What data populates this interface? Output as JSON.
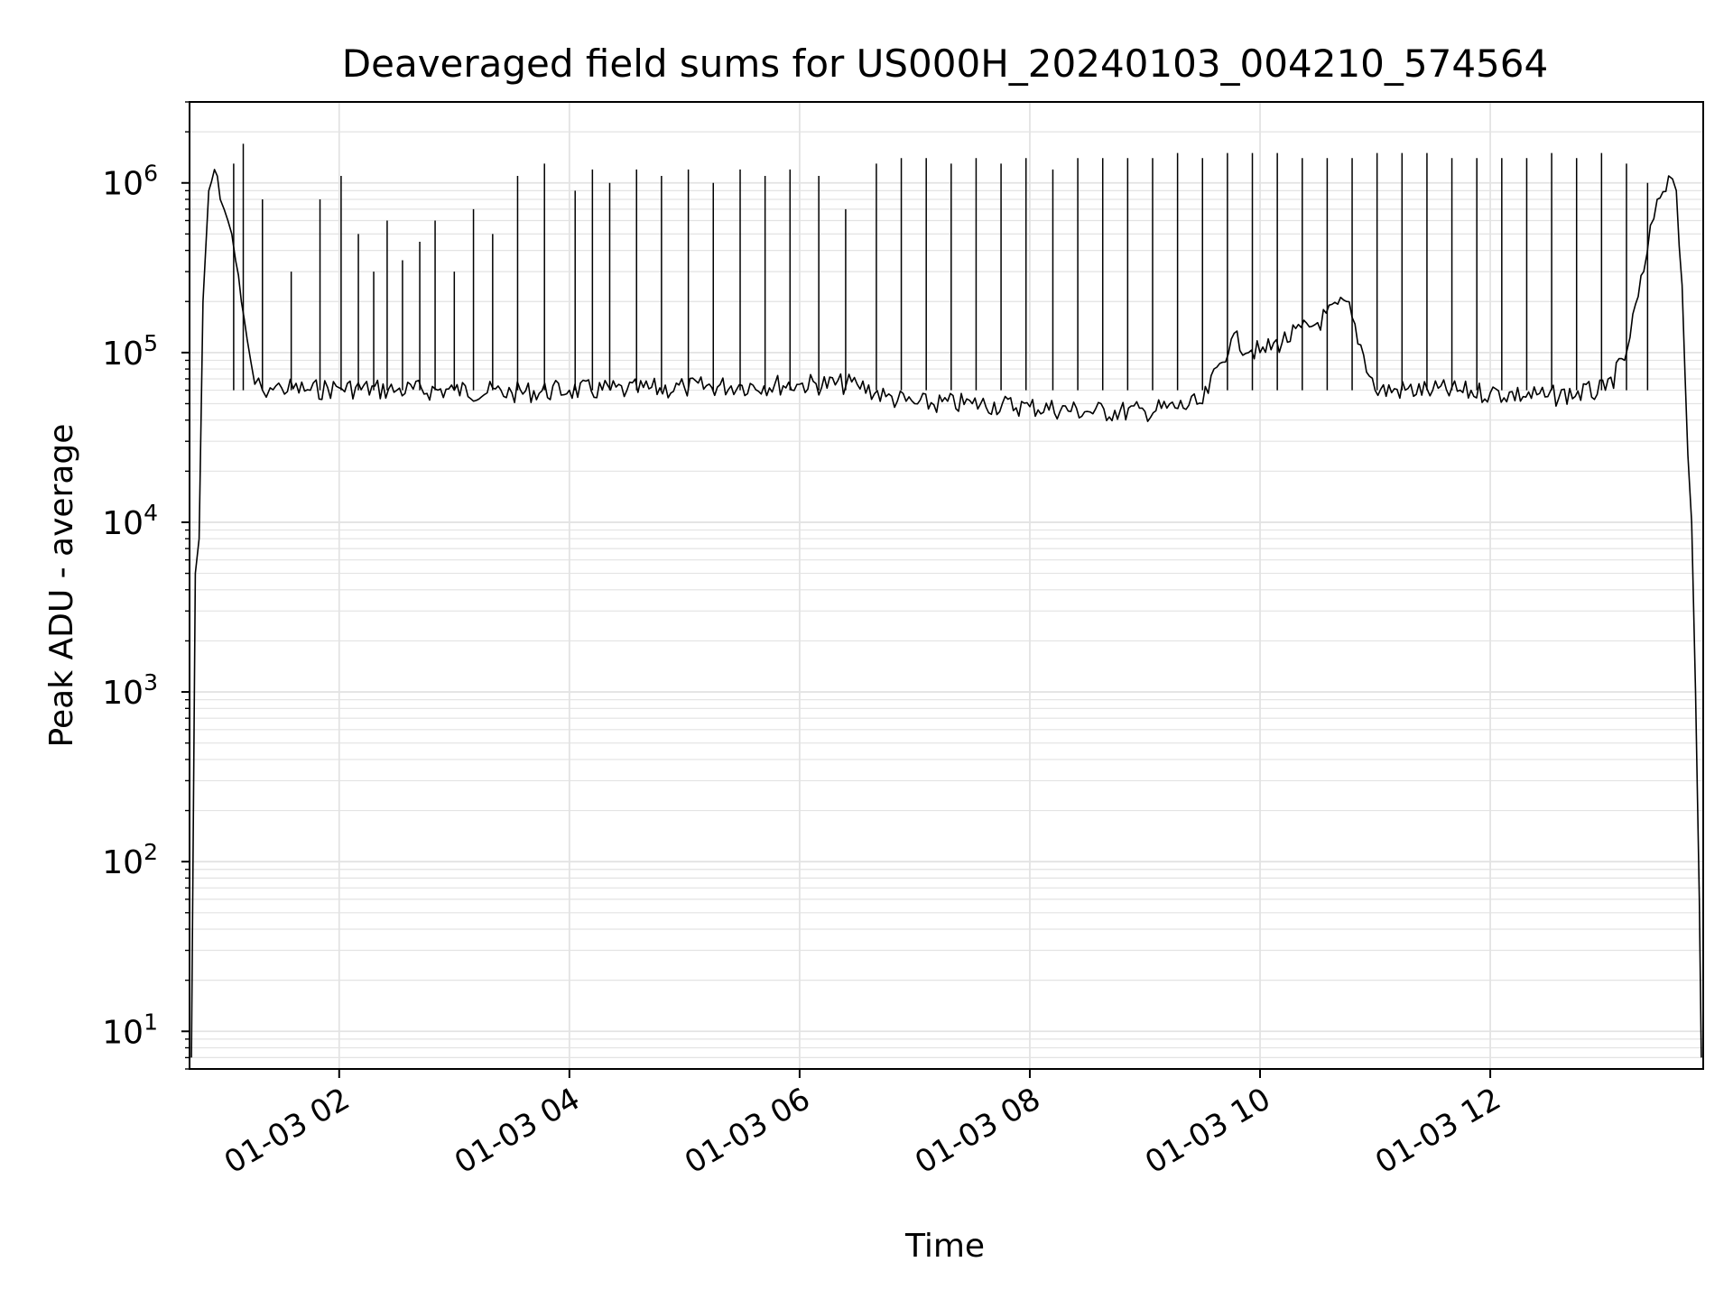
{
  "chart_data": {
    "type": "line",
    "title": "Deaveraged field sums for US000H_20240103_004210_574564",
    "xlabel": "Time",
    "ylabel": "Peak ADU - average",
    "x_ticks": [
      "01-03 02",
      "01-03 04",
      "01-03 06",
      "01-03 08",
      "01-03 10",
      "01-03 12"
    ],
    "y_scale": "log",
    "y_ticks": [
      {
        "value": 10,
        "base": "10",
        "exp": "1"
      },
      {
        "value": 100,
        "base": "10",
        "exp": "2"
      },
      {
        "value": 1000,
        "base": "10",
        "exp": "3"
      },
      {
        "value": 10000,
        "base": "10",
        "exp": "4"
      },
      {
        "value": 100000,
        "base": "10",
        "exp": "5"
      },
      {
        "value": 1000000,
        "base": "10",
        "exp": "6"
      }
    ],
    "xlim": [
      "2024-01-03 00:42",
      "2024-01-03 13:51"
    ],
    "ylim": [
      6,
      3000000
    ],
    "grid": true,
    "line_color": "#000000",
    "grid_color": "#e3e3e3",
    "series": [
      {
        "x": [
          "2024-01-03 00:43",
          "2024-01-03 00:45",
          "2024-01-03 00:47",
          "2024-01-03 00:49",
          "2024-01-03 00:52",
          "2024-01-03 00:55",
          "2024-01-03 00:58",
          "2024-01-03 01:00",
          "2024-01-03 01:02",
          "2024-01-03 01:04",
          "2024-01-03 01:06",
          "2024-01-03 01:09",
          "2024-01-03 01:12",
          "2024-01-03 01:16",
          "2024-01-03 01:20",
          "2024-01-03 01:24",
          "2024-01-03 01:30",
          "2024-01-03 01:45",
          "2024-01-03 02:00",
          "2024-01-03 02:30",
          "2024-01-03 03:00",
          "2024-01-03 03:30",
          "2024-01-03 04:00",
          "2024-01-03 04:30",
          "2024-01-03 05:00",
          "2024-01-03 05:30",
          "2024-01-03 06:00",
          "2024-01-03 06:30",
          "2024-01-03 06:45",
          "2024-01-03 07:00",
          "2024-01-03 07:30",
          "2024-01-03 08:00",
          "2024-01-03 08:30",
          "2024-01-03 09:00",
          "2024-01-03 09:30",
          "2024-01-03 09:45",
          "2024-01-03 10:00",
          "2024-01-03 10:30",
          "2024-01-03 10:45",
          "2024-01-03 11:00",
          "2024-01-03 11:30",
          "2024-01-03 12:00",
          "2024-01-03 12:30",
          "2024-01-03 13:00",
          "2024-01-03 13:10",
          "2024-01-03 13:20",
          "2024-01-03 13:27",
          "2024-01-03 13:33",
          "2024-01-03 13:37",
          "2024-01-03 13:40",
          "2024-01-03 13:43",
          "2024-01-03 13:45",
          "2024-01-03 13:47",
          "2024-01-03 13:49",
          "2024-01-03 13:50"
        ],
        "y": [
          7,
          5000,
          8000,
          200000,
          900000,
          1200000,
          800000,
          700000,
          600000,
          500000,
          350000,
          200000,
          120000,
          65000,
          60000,
          62000,
          62000,
          60000,
          62000,
          60000,
          60000,
          58000,
          60000,
          60000,
          62000,
          64000,
          65000,
          65000,
          55000,
          50000,
          50000,
          48000,
          45000,
          45000,
          50000,
          120000,
          100000,
          150000,
          200000,
          60000,
          60000,
          58000,
          55000,
          60000,
          90000,
          300000,
          800000,
          1100000,
          900000,
          250000,
          25000,
          10000,
          1000,
          60,
          7
        ]
      }
    ],
    "spikes": [
      {
        "x": "2024-01-03 01:05",
        "y": 1300000
      },
      {
        "x": "2024-01-03 01:10",
        "y": 1700000
      },
      {
        "x": "2024-01-03 01:20",
        "y": 800000
      },
      {
        "x": "2024-01-03 01:35",
        "y": 300000
      },
      {
        "x": "2024-01-03 01:50",
        "y": 800000
      },
      {
        "x": "2024-01-03 02:01",
        "y": 1100000
      },
      {
        "x": "2024-01-03 02:10",
        "y": 500000
      },
      {
        "x": "2024-01-03 02:18",
        "y": 300000
      },
      {
        "x": "2024-01-03 02:25",
        "y": 600000
      },
      {
        "x": "2024-01-03 02:33",
        "y": 350000
      },
      {
        "x": "2024-01-03 02:42",
        "y": 450000
      },
      {
        "x": "2024-01-03 02:50",
        "y": 600000
      },
      {
        "x": "2024-01-03 03:00",
        "y": 300000
      },
      {
        "x": "2024-01-03 03:10",
        "y": 700000
      },
      {
        "x": "2024-01-03 03:20",
        "y": 500000
      },
      {
        "x": "2024-01-03 03:33",
        "y": 1100000
      },
      {
        "x": "2024-01-03 03:47",
        "y": 1300000
      },
      {
        "x": "2024-01-03 04:03",
        "y": 900000
      },
      {
        "x": "2024-01-03 04:12",
        "y": 1200000
      },
      {
        "x": "2024-01-03 04:21",
        "y": 1000000
      },
      {
        "x": "2024-01-03 04:35",
        "y": 1200000
      },
      {
        "x": "2024-01-03 04:48",
        "y": 1100000
      },
      {
        "x": "2024-01-03 05:02",
        "y": 1200000
      },
      {
        "x": "2024-01-03 05:15",
        "y": 1000000
      },
      {
        "x": "2024-01-03 05:29",
        "y": 1200000
      },
      {
        "x": "2024-01-03 05:42",
        "y": 1100000
      },
      {
        "x": "2024-01-03 05:55",
        "y": 1200000
      },
      {
        "x": "2024-01-03 06:10",
        "y": 1100000
      },
      {
        "x": "2024-01-03 06:24",
        "y": 700000
      },
      {
        "x": "2024-01-03 06:40",
        "y": 1300000
      },
      {
        "x": "2024-01-03 06:53",
        "y": 1400000
      },
      {
        "x": "2024-01-03 07:06",
        "y": 1400000
      },
      {
        "x": "2024-01-03 07:19",
        "y": 1300000
      },
      {
        "x": "2024-01-03 07:32",
        "y": 1400000
      },
      {
        "x": "2024-01-03 07:45",
        "y": 1300000
      },
      {
        "x": "2024-01-03 07:58",
        "y": 1400000
      },
      {
        "x": "2024-01-03 08:12",
        "y": 1200000
      },
      {
        "x": "2024-01-03 08:25",
        "y": 1400000
      },
      {
        "x": "2024-01-03 08:38",
        "y": 1400000
      },
      {
        "x": "2024-01-03 08:51",
        "y": 1400000
      },
      {
        "x": "2024-01-03 09:04",
        "y": 1400000
      },
      {
        "x": "2024-01-03 09:17",
        "y": 1500000
      },
      {
        "x": "2024-01-03 09:30",
        "y": 1400000
      },
      {
        "x": "2024-01-03 09:43",
        "y": 1500000
      },
      {
        "x": "2024-01-03 09:56",
        "y": 1500000
      },
      {
        "x": "2024-01-03 10:09",
        "y": 1500000
      },
      {
        "x": "2024-01-03 10:22",
        "y": 1400000
      },
      {
        "x": "2024-01-03 10:35",
        "y": 1400000
      },
      {
        "x": "2024-01-03 10:48",
        "y": 1400000
      },
      {
        "x": "2024-01-03 11:01",
        "y": 1500000
      },
      {
        "x": "2024-01-03 11:14",
        "y": 1500000
      },
      {
        "x": "2024-01-03 11:27",
        "y": 1500000
      },
      {
        "x": "2024-01-03 11:40",
        "y": 1400000
      },
      {
        "x": "2024-01-03 11:53",
        "y": 1400000
      },
      {
        "x": "2024-01-03 12:06",
        "y": 1400000
      },
      {
        "x": "2024-01-03 12:19",
        "y": 1400000
      },
      {
        "x": "2024-01-03 12:32",
        "y": 1500000
      },
      {
        "x": "2024-01-03 12:45",
        "y": 1400000
      },
      {
        "x": "2024-01-03 12:58",
        "y": 1500000
      },
      {
        "x": "2024-01-03 13:11",
        "y": 1300000
      },
      {
        "x": "2024-01-03 13:22",
        "y": 1000000
      }
    ]
  }
}
